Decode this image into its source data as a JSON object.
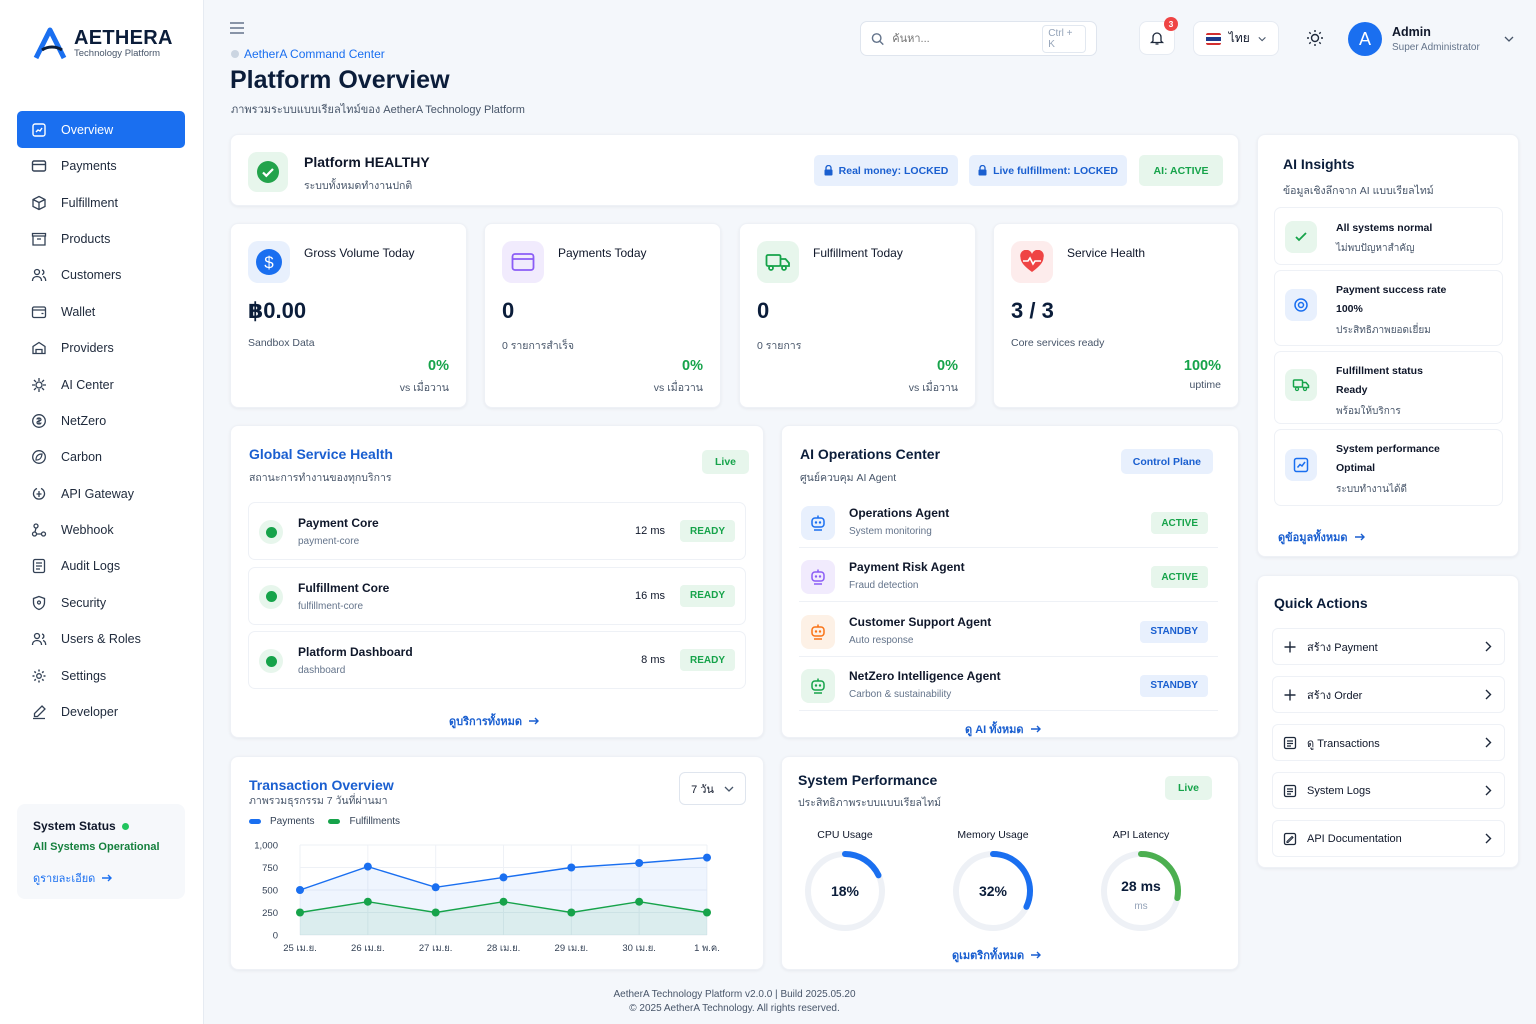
{
  "brand": {
    "name": "AETHERA",
    "tagline": "Technology Platform"
  },
  "sidebar": {
    "items": [
      {
        "label": "Overview",
        "icon": "overview-icon"
      },
      {
        "label": "Payments",
        "icon": "payments-icon"
      },
      {
        "label": "Fulfillment",
        "icon": "fulfillment-icon"
      },
      {
        "label": "Products",
        "icon": "products-icon"
      },
      {
        "label": "Customers",
        "icon": "customers-icon"
      },
      {
        "label": "Wallet",
        "icon": "wallet-icon"
      },
      {
        "label": "Providers",
        "icon": "providers-icon"
      },
      {
        "label": "AI Center",
        "icon": "ai-center-icon"
      },
      {
        "label": "NetZero",
        "icon": "netzero-icon"
      },
      {
        "label": "Carbon",
        "icon": "carbon-icon"
      },
      {
        "label": "API Gateway",
        "icon": "api-gateway-icon"
      },
      {
        "label": "Webhook",
        "icon": "webhook-icon"
      },
      {
        "label": "Audit Logs",
        "icon": "audit-logs-icon"
      },
      {
        "label": "Security",
        "icon": "security-icon"
      },
      {
        "label": "Users & Roles",
        "icon": "users-roles-icon"
      },
      {
        "label": "Settings",
        "icon": "settings-icon"
      },
      {
        "label": "Developer",
        "icon": "developer-icon"
      }
    ],
    "system_status": {
      "title": "System Status",
      "sub": "All Systems Operational",
      "link": "ดูรายละเอียด"
    }
  },
  "header": {
    "breadcrumb": "AetherA Command Center",
    "title": "Platform Overview",
    "subtitle": "ภาพรวมระบบแบบเรียลไทม์ของ AetherA Technology Platform",
    "search_placeholder": "ค้นหา...",
    "search_shortcut": "Ctrl + K",
    "notifications": "3",
    "language": "ไทย",
    "user": {
      "initial": "A",
      "name": "Admin",
      "role": "Super Administrator"
    }
  },
  "health": {
    "title": "Platform HEALTHY",
    "sub": "ระบบทั้งหมดทำงานปกติ",
    "pills": [
      "Real money: LOCKED",
      "Live fulfillment: LOCKED",
      "AI: ACTIVE"
    ]
  },
  "kpis": [
    {
      "label": "Gross Volume Today",
      "value": "฿0.00",
      "sub": "Sandbox Data",
      "pct": "0%",
      "cmp": "vs เมื่อวาน"
    },
    {
      "label": "Payments Today",
      "value": "0",
      "sub": "0 รายการสำเร็จ",
      "pct": "0%",
      "cmp": "vs เมื่อวาน"
    },
    {
      "label": "Fulfillment Today",
      "value": "0",
      "sub": "0 รายการ",
      "pct": "0%",
      "cmp": "vs เมื่อวาน"
    },
    {
      "label": "Service Health",
      "value": "3 / 3",
      "sub": "Core services ready",
      "pct": "100%",
      "cmp": "uptime"
    }
  ],
  "services": {
    "title": "Global Service Health",
    "sub": "สถานะการทำงานของทุกบริการ",
    "badge": "Live",
    "rows": [
      {
        "name": "Payment Core",
        "id": "payment-core",
        "ms": "12 ms",
        "state": "READY"
      },
      {
        "name": "Fulfillment Core",
        "id": "fulfillment-core",
        "ms": "16 ms",
        "state": "READY"
      },
      {
        "name": "Platform Dashboard",
        "id": "dashboard",
        "ms": "8 ms",
        "state": "READY"
      }
    ],
    "link": "ดูบริการทั้งหมด"
  },
  "ai_ops": {
    "title": "AI Operations Center",
    "sub": "ศูนย์ควบคุม AI Agent",
    "badge": "Control Plane",
    "agents": [
      {
        "name": "Operations Agent",
        "desc": "System monitoring",
        "state": "ACTIVE"
      },
      {
        "name": "Payment Risk Agent",
        "desc": "Fraud detection",
        "state": "ACTIVE"
      },
      {
        "name": "Customer Support Agent",
        "desc": "Auto response",
        "state": "STANDBY"
      },
      {
        "name": "NetZero Intelligence Agent",
        "desc": "Carbon & sustainability",
        "state": "STANDBY"
      }
    ],
    "link": "ดู AI ทั้งหมด"
  },
  "transactions": {
    "title": "Transaction Overview",
    "sub": "ภาพรวมธุรกรรม 7 วันที่ผ่านมา",
    "range": "7 วัน"
  },
  "chart_data": {
    "type": "line",
    "categories": [
      "25 เม.ย.",
      "26 เม.ย.",
      "27 เม.ย.",
      "28 เม.ย.",
      "29 เม.ย.",
      "30 เม.ย.",
      "1 พ.ค."
    ],
    "series": [
      {
        "name": "Payments",
        "values": [
          500,
          760,
          530,
          640,
          750,
          800,
          860
        ],
        "color": "#1a6ff0"
      },
      {
        "name": "Fulfillments",
        "values": [
          250,
          370,
          250,
          370,
          250,
          370,
          250
        ],
        "color": "#16a34a"
      }
    ],
    "yticks": [
      "0",
      "250",
      "500",
      "750",
      "1,000"
    ],
    "ylim": [
      0,
      1000
    ],
    "legend": "top-left"
  },
  "performance": {
    "title": "System Performance",
    "sub": "ประสิทธิภาพระบบแบบเรียลไทม์",
    "badge": "Live",
    "gauges": [
      {
        "label": "CPU Usage",
        "value": "18%",
        "fraction": 0.18,
        "unit": "",
        "color": "#1a6ff0"
      },
      {
        "label": "Memory Usage",
        "value": "32%",
        "fraction": 0.32,
        "unit": "",
        "color": "#1a6ff0"
      },
      {
        "label": "API Latency",
        "value": "28 ms",
        "fraction": 0.28,
        "unit": "ms",
        "color": "#4caf50"
      }
    ],
    "link": "ดูเมตริกทั้งหมด"
  },
  "insights": {
    "title": "AI Insights",
    "sub": "ข้อมูลเชิงลึกจาก AI แบบเรียลไทม์",
    "items": [
      {
        "title": "All systems normal",
        "line2": "",
        "sub": "ไม่พบปัญหาสำคัญ"
      },
      {
        "title": "Payment success rate",
        "line2": "100%",
        "sub": "ประสิทธิภาพยอดเยี่ยม"
      },
      {
        "title": "Fulfillment status",
        "line2": "Ready",
        "sub": "พร้อมให้บริการ"
      },
      {
        "title": "System performance",
        "line2": "Optimal",
        "sub": "ระบบทำงานได้ดี"
      }
    ],
    "link": "ดูข้อมูลทั้งหมด"
  },
  "quick_actions": {
    "title": "Quick Actions",
    "items": [
      "สร้าง Payment",
      "สร้าง Order",
      "ดู Transactions",
      "System Logs",
      "API Documentation"
    ]
  },
  "footer": {
    "line1": "AetherA Technology Platform v2.0.0   |   Build 2025.05.20",
    "line2": "© 2025 AetherA Technology. All rights reserved."
  }
}
